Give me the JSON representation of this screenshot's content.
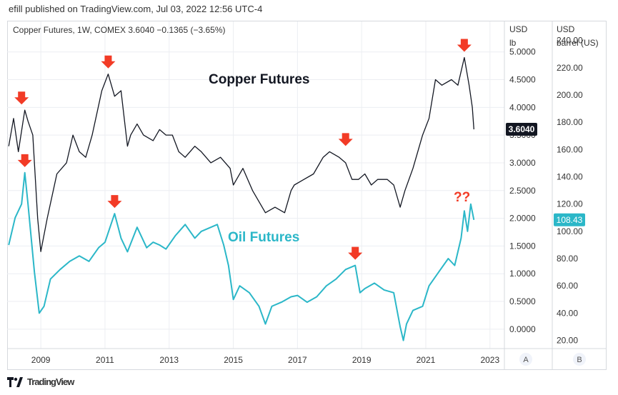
{
  "publisher_line": "efill published on TradingView.com, Jul 03, 2022 12:56 UTC-4",
  "footer": {
    "logo_icon": "tradingview-logo-icon",
    "brand": "TradingView"
  },
  "colors": {
    "copper": "#131722",
    "oil": "#2bb7c8",
    "arrow": "#f23b26",
    "grid": "#eceef2"
  },
  "chart_data": {
    "type": "line",
    "symbol_line": "Copper Futures, 1W, COMEX  3.6040  −0.1365 (−3.65%)",
    "annotations": {
      "copper_title": "Copper Futures",
      "oil_title": "Oil Futures",
      "question": "??"
    },
    "x_ticks": [
      "2009",
      "2011",
      "2013",
      "2015",
      "2017",
      "2019",
      "2021",
      "2023"
    ],
    "x_range": [
      2007.95,
      2023.45
    ],
    "left_axis": {
      "unit_line1": "USD",
      "unit_line2": "lb",
      "range": [
        -0.35,
        5.55
      ],
      "ticks": [
        "5.0000",
        "4.5000",
        "4.0000",
        "3.5000",
        "3.0000",
        "2.5000",
        "2.0000",
        "1.5000",
        "1.0000",
        "0.5000",
        "0.0000"
      ],
      "tick_values": [
        5,
        4.5,
        4,
        3.5,
        3,
        2.5,
        2,
        1.5,
        1,
        0.5,
        0
      ],
      "last_value_label": "3.6040",
      "last_value": 3.604
    },
    "right_axis": {
      "unit_line1": "USD",
      "unit_line2": "barrel (US)",
      "range": [
        14,
        254
      ],
      "ticks": [
        "240.00",
        "220.00",
        "200.00",
        "180.00",
        "160.00",
        "140.00",
        "120.00",
        "100.00",
        "80.00",
        "60.00",
        "40.00",
        "20.00"
      ],
      "tick_values": [
        240,
        220,
        200,
        180,
        160,
        140,
        120,
        100,
        80,
        60,
        40,
        20
      ],
      "last_value_label": "108.43",
      "last_value": 108.43
    },
    "axis_buttons": {
      "left": "A",
      "right": "B"
    },
    "series": [
      {
        "name": "Copper Futures",
        "axis": "left",
        "x": [
          2008.0,
          2008.15,
          2008.3,
          2008.5,
          2008.6,
          2008.75,
          2008.9,
          2009.0,
          2009.2,
          2009.5,
          2009.8,
          2010.0,
          2010.2,
          2010.4,
          2010.6,
          2010.9,
          2011.1,
          2011.3,
          2011.5,
          2011.7,
          2011.8,
          2012.0,
          2012.2,
          2012.5,
          2012.7,
          2012.9,
          2013.1,
          2013.3,
          2013.5,
          2013.8,
          2014.0,
          2014.3,
          2014.6,
          2014.9,
          2015.0,
          2015.3,
          2015.6,
          2015.9,
          2016.0,
          2016.3,
          2016.6,
          2016.8,
          2016.9,
          2017.2,
          2017.5,
          2017.8,
          2018.0,
          2018.3,
          2018.5,
          2018.7,
          2018.9,
          2019.1,
          2019.3,
          2019.5,
          2019.8,
          2020.0,
          2020.2,
          2020.35,
          2020.6,
          2020.9,
          2021.1,
          2021.3,
          2021.5,
          2021.8,
          2022.0,
          2022.2,
          2022.35,
          2022.45,
          2022.5
        ],
        "values": [
          3.3,
          3.8,
          3.2,
          3.95,
          3.75,
          3.5,
          2.0,
          1.4,
          2.0,
          2.8,
          3.0,
          3.5,
          3.2,
          3.1,
          3.5,
          4.3,
          4.6,
          4.2,
          4.3,
          3.3,
          3.5,
          3.7,
          3.5,
          3.4,
          3.6,
          3.5,
          3.5,
          3.2,
          3.1,
          3.3,
          3.2,
          3.0,
          3.1,
          2.9,
          2.6,
          2.9,
          2.5,
          2.2,
          2.1,
          2.2,
          2.1,
          2.5,
          2.6,
          2.7,
          2.8,
          3.1,
          3.2,
          3.1,
          3.0,
          2.7,
          2.7,
          2.8,
          2.6,
          2.7,
          2.7,
          2.6,
          2.2,
          2.5,
          2.9,
          3.5,
          3.8,
          4.5,
          4.4,
          4.5,
          4.4,
          4.9,
          4.4,
          4.0,
          3.604
        ]
      },
      {
        "name": "Oil Futures",
        "axis": "right",
        "x": [
          2008.0,
          2008.2,
          2008.4,
          2008.5,
          2008.6,
          2008.8,
          2008.95,
          2009.1,
          2009.3,
          2009.6,
          2009.9,
          2010.2,
          2010.5,
          2010.8,
          2011.0,
          2011.3,
          2011.5,
          2011.7,
          2012.0,
          2012.3,
          2012.5,
          2012.7,
          2012.9,
          2013.2,
          2013.5,
          2013.8,
          2014.0,
          2014.3,
          2014.5,
          2014.7,
          2014.85,
          2015.0,
          2015.2,
          2015.5,
          2015.8,
          2016.0,
          2016.2,
          2016.5,
          2016.8,
          2017.0,
          2017.3,
          2017.6,
          2017.9,
          2018.2,
          2018.5,
          2018.8,
          2018.95,
          2019.1,
          2019.4,
          2019.7,
          2020.0,
          2020.2,
          2020.3,
          2020.4,
          2020.6,
          2020.9,
          2021.1,
          2021.4,
          2021.7,
          2021.9,
          2022.1,
          2022.2,
          2022.3,
          2022.4,
          2022.5
        ],
        "values": [
          90,
          110,
          120,
          143,
          120,
          70,
          40,
          45,
          65,
          72,
          78,
          82,
          78,
          88,
          92,
          113,
          95,
          85,
          103,
          88,
          92,
          90,
          87,
          97,
          105,
          95,
          100,
          103,
          105,
          90,
          75,
          50,
          60,
          55,
          45,
          32,
          45,
          48,
          52,
          53,
          48,
          52,
          60,
          65,
          72,
          75,
          55,
          58,
          62,
          57,
          55,
          30,
          20,
          32,
          42,
          45,
          60,
          70,
          80,
          75,
          95,
          115,
          100,
          120,
          108.43
        ]
      }
    ]
  }
}
